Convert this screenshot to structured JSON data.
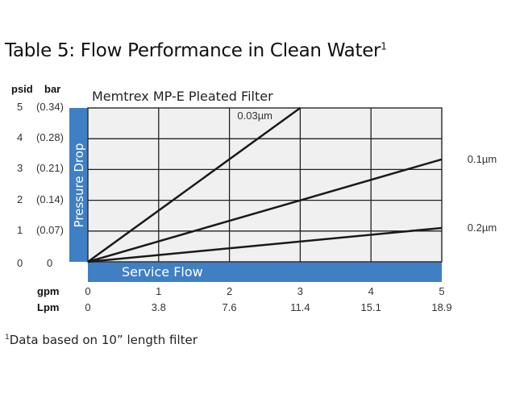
{
  "title": "Table 5: Flow Performance in Clean Water",
  "title_footnote_mark": "1",
  "footnote_mark": "1",
  "footnote": "Data based on 10” length filter",
  "chart_data": {
    "type": "line",
    "title": "Memtrex MP-E Pleated Filter",
    "xlabel": "Service Flow",
    "ylabel": "Pressure Drop",
    "x_units": [
      "gpm",
      "Lpm"
    ],
    "x_ticks_gpm": [
      "0",
      "1",
      "2",
      "3",
      "4",
      "5"
    ],
    "x_ticks_lpm": [
      "0",
      "3.8",
      "7.6",
      "11.4",
      "15.1",
      "18.9"
    ],
    "y_units": [
      "psid",
      "bar"
    ],
    "y_ticks_psid": [
      "0",
      "1",
      "2",
      "3",
      "4",
      "5"
    ],
    "y_ticks_bar": [
      "0",
      "(0.07)",
      "(0.14)",
      "(0.21)",
      "(0.28)",
      "(0.34)"
    ],
    "xlim": [
      0,
      5
    ],
    "ylim": [
      0,
      5
    ],
    "grid": true,
    "axis_bar_color": "#3f7fc4",
    "series": [
      {
        "name": "0.03µm",
        "x": [
          0,
          3
        ],
        "y": [
          0,
          5
        ]
      },
      {
        "name": "0.1µm",
        "x": [
          0,
          5
        ],
        "y": [
          0,
          3.33
        ]
      },
      {
        "name": "0.2µm",
        "x": [
          0,
          5
        ],
        "y": [
          0,
          1.1
        ]
      }
    ]
  }
}
